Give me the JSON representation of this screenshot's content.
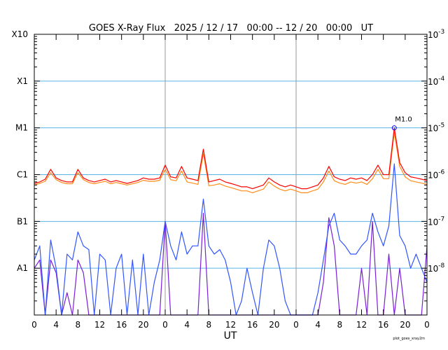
{
  "chart_data": {
    "type": "line",
    "title": "GOES X-Ray Flux   2025 / 12 / 17   00:00 -- 12 / 20   00:00   UT",
    "xlabel": "UT",
    "x_unit": "hours since 2025-12-17 00:00 UT",
    "xlim": [
      0,
      72
    ],
    "x_tick_labels": [
      "0",
      "4",
      "8",
      "12",
      "16",
      "20",
      "0",
      "4",
      "8",
      "12",
      "16",
      "20",
      "0",
      "4",
      "8",
      "12",
      "16",
      "20",
      "0"
    ],
    "y_scale": "log",
    "ylim": [
      1e-09,
      0.001
    ],
    "left_tick_labels": [
      {
        "value": 0.001,
        "label": "X10"
      },
      {
        "value": 0.0001,
        "label": "X1"
      },
      {
        "value": 1e-05,
        "label": "M1"
      },
      {
        "value": 1e-06,
        "label": "C1"
      },
      {
        "value": 1e-07,
        "label": "B1"
      },
      {
        "value": 1e-08,
        "label": "A1"
      }
    ],
    "right_tick_labels": [
      {
        "value": 0.001,
        "exp": "-3"
      },
      {
        "value": 0.0001,
        "exp": "-4"
      },
      {
        "value": 1e-05,
        "exp": "-5"
      },
      {
        "value": 1e-06,
        "exp": "-6"
      },
      {
        "value": 1e-07,
        "exp": "-7"
      },
      {
        "value": 1e-08,
        "exp": "-8"
      }
    ],
    "grid": "horizontal lines at each decade, vertical lines at day boundaries",
    "annotations": [
      {
        "x": 66,
        "y": 1e-05,
        "text": "M1.0"
      }
    ],
    "x": [
      0,
      1,
      2,
      3,
      4,
      5,
      6,
      7,
      8,
      9,
      10,
      11,
      12,
      13,
      14,
      15,
      16,
      17,
      18,
      19,
      20,
      21,
      22,
      23,
      24,
      25,
      26,
      27,
      28,
      29,
      30,
      31,
      32,
      33,
      34,
      35,
      36,
      37,
      38,
      39,
      40,
      41,
      42,
      43,
      44,
      45,
      46,
      47,
      48,
      49,
      50,
      51,
      52,
      53,
      54,
      55,
      56,
      57,
      58,
      59,
      60,
      61,
      62,
      63,
      64,
      65,
      66,
      67,
      68,
      69,
      70,
      71,
      72
    ],
    "series": [
      {
        "color": "#ff8c1a",
        "values": [
          6e-07,
          6.5e-07,
          7.2e-07,
          1.1e-06,
          7.8e-07,
          6.8e-07,
          6.4e-07,
          6.4e-07,
          1.1e-06,
          7.8e-07,
          6.8e-07,
          6.4e-07,
          6.8e-07,
          7.2e-07,
          6.4e-07,
          6.8e-07,
          6.4e-07,
          6e-07,
          6.4e-07,
          6.8e-07,
          7.6e-07,
          7.2e-07,
          7.2e-07,
          7.6e-07,
          1.3e-06,
          7.8e-07,
          7.4e-07,
          1.2e-06,
          7e-07,
          6.6e-07,
          6.2e-07,
          2.8e-06,
          5.8e-07,
          6e-07,
          6.4e-07,
          5.7e-07,
          5.3e-07,
          4.9e-07,
          4.5e-07,
          4.5e-07,
          4.1e-07,
          4.5e-07,
          4.9e-07,
          7e-07,
          5.7e-07,
          4.9e-07,
          4.5e-07,
          4.9e-07,
          4.5e-07,
          4.1e-07,
          4.1e-07,
          4.5e-07,
          4.9e-07,
          7e-07,
          1.2e-06,
          7.4e-07,
          6.6e-07,
          6.2e-07,
          7e-07,
          6.6e-07,
          7e-07,
          6.2e-07,
          8.2e-07,
          1.3e-06,
          8.2e-07,
          8.2e-07,
          8e-06,
          1.5e-06,
          9e-07,
          7.4e-07,
          7e-07,
          6.6e-07,
          6.2e-07
        ]
      },
      {
        "color": "#ff0000",
        "values": [
          6.5e-07,
          7e-07,
          8e-07,
          1.3e-06,
          8.5e-07,
          7.5e-07,
          7e-07,
          7e-07,
          1.3e-06,
          8.5e-07,
          7.5e-07,
          7e-07,
          7.5e-07,
          8e-07,
          7e-07,
          7.5e-07,
          7e-07,
          6.5e-07,
          7e-07,
          7.5e-07,
          8.5e-07,
          8e-07,
          8e-07,
          8.5e-07,
          1.6e-06,
          9e-07,
          8.5e-07,
          1.5e-06,
          8.5e-07,
          8e-07,
          7.5e-07,
          3.5e-06,
          7e-07,
          7.5e-07,
          8e-07,
          7e-07,
          6.5e-07,
          6e-07,
          5.5e-07,
          5.5e-07,
          5e-07,
          5.5e-07,
          6e-07,
          8.5e-07,
          7e-07,
          6e-07,
          5.5e-07,
          6e-07,
          5.5e-07,
          5e-07,
          5e-07,
          5.5e-07,
          6e-07,
          8.5e-07,
          1.5e-06,
          9e-07,
          8e-07,
          7.5e-07,
          8.5e-07,
          8e-07,
          8.5e-07,
          7.5e-07,
          1e-06,
          1.6e-06,
          1e-06,
          1e-06,
          1e-05,
          1.8e-06,
          1.1e-06,
          9e-07,
          8.5e-07,
          8e-07,
          7.5e-07
        ]
      },
      {
        "color": "#7a1fd6",
        "values": [
          1e-08,
          1.5e-08,
          1e-09,
          1.5e-08,
          8e-09,
          1e-09,
          3e-09,
          1e-09,
          1.5e-08,
          8e-09,
          1e-09,
          1e-09,
          1e-09,
          1e-09,
          1e-09,
          1e-09,
          1e-09,
          1e-09,
          1e-09,
          1e-09,
          1e-09,
          1e-09,
          1e-09,
          1e-09,
          1e-07,
          1e-09,
          1e-09,
          1e-09,
          1e-09,
          1e-09,
          1e-09,
          1.5e-07,
          1e-09,
          1e-09,
          1e-09,
          1e-09,
          1e-09,
          1e-09,
          1e-09,
          1e-09,
          1e-09,
          1e-09,
          1e-09,
          1e-09,
          1e-09,
          1e-09,
          1e-09,
          1e-09,
          1e-09,
          1e-09,
          1e-09,
          1e-09,
          1e-09,
          5e-09,
          1.2e-07,
          3e-08,
          1e-09,
          1e-09,
          1e-09,
          1e-09,
          1e-08,
          1e-09,
          1e-07,
          1e-09,
          1e-09,
          2e-08,
          1e-09,
          1e-08,
          1e-09,
          1e-09,
          1e-09,
          1e-09,
          3e-08
        ]
      },
      {
        "color": "#3355ff",
        "values": [
          1.5e-08,
          3e-08,
          1e-09,
          4e-08,
          1e-08,
          1e-09,
          2e-08,
          1.5e-08,
          6e-08,
          3e-08,
          2.5e-08,
          1e-09,
          2e-08,
          1.5e-08,
          1e-09,
          1e-08,
          2e-08,
          1e-09,
          1.5e-08,
          1e-09,
          2e-08,
          1e-09,
          5e-09,
          1.5e-08,
          1e-07,
          3e-08,
          1.5e-08,
          6e-08,
          2e-08,
          3e-08,
          3e-08,
          3e-07,
          3e-08,
          2e-08,
          2.5e-08,
          1.5e-08,
          5e-09,
          1e-09,
          2e-09,
          1e-08,
          3e-09,
          1e-09,
          1e-08,
          4e-08,
          3e-08,
          1e-08,
          2e-09,
          1e-09,
          1e-09,
          1e-09,
          1e-09,
          1e-09,
          3e-09,
          1.5e-08,
          8e-08,
          1.5e-07,
          4e-08,
          3e-08,
          2e-08,
          2e-08,
          3e-08,
          4e-08,
          1.5e-07,
          6e-08,
          3e-08,
          8e-08,
          1.7e-06,
          5e-08,
          3e-08,
          1e-08,
          2e-08,
          1e-08,
          5e-09
        ]
      }
    ]
  },
  "footer": "plot_goes_xray2m",
  "colors": {
    "grid": "#5ab4e6",
    "day_line": "#999999",
    "marker": "#0000ff"
  }
}
